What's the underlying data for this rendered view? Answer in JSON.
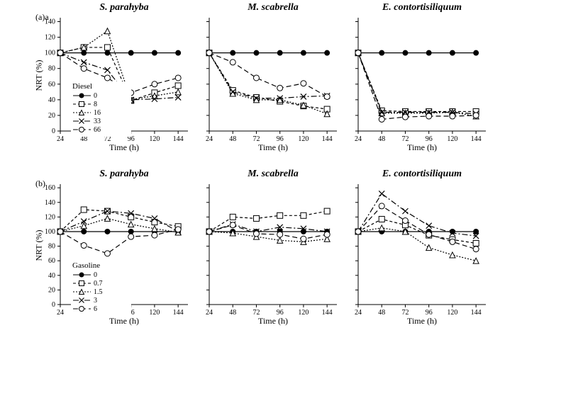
{
  "font_family": "Times New Roman",
  "title_fontsize": 14,
  "axis_label_fontsize": 12,
  "tick_fontsize": 10,
  "legend_fontsize": 10,
  "background_color": "#ffffff",
  "line_color": "#000000",
  "axis_color": "#000000",
  "subplot_width": 180,
  "subplot_height": 160,
  "x_axis": {
    "label": "Time (h)",
    "ticks": [
      24,
      48,
      72,
      96,
      120,
      144
    ],
    "xlim": [
      24,
      154
    ]
  },
  "markers": {
    "0": {
      "shape": "filled-circle",
      "dash": "solid",
      "label": "0"
    },
    "s1": {
      "shape": "open-square",
      "dash": "short",
      "label_a": "8",
      "label_b": "0.7"
    },
    "s2": {
      "shape": "open-triangle",
      "dash": "dots",
      "label_a": "16",
      "label_b": "1.5"
    },
    "s3": {
      "shape": "x-mark",
      "dash": "longshort",
      "label_a": "33",
      "label_b": "3"
    },
    "s4": {
      "shape": "open-circle",
      "dash": "long",
      "label_a": "66",
      "label_b": "6"
    }
  },
  "panel_a": {
    "label": "(a)a",
    "y_label": "NRT (%)",
    "ylim": [
      0,
      145
    ],
    "yticks": [
      0,
      20,
      40,
      60,
      80,
      100,
      120,
      140
    ],
    "legend_title": "Diesel",
    "legend_items": [
      "0",
      "8",
      "16",
      "33",
      "66"
    ],
    "subplots": [
      {
        "title": "S. parahyba",
        "series": {
          "0": [
            [
              24,
              100
            ],
            [
              48,
              100
            ],
            [
              72,
              100
            ],
            [
              96,
              100
            ],
            [
              120,
              100
            ],
            [
              144,
              100
            ]
          ],
          "s1": [
            [
              24,
              100
            ],
            [
              48,
              107
            ],
            [
              72,
              107
            ],
            [
              96,
              39
            ],
            [
              120,
              49
            ],
            [
              144,
              58
            ]
          ],
          "s2": [
            [
              24,
              100
            ],
            [
              48,
              107
            ],
            [
              72,
              128
            ],
            [
              96,
              40
            ],
            [
              120,
              45
            ],
            [
              144,
              50
            ]
          ],
          "s3": [
            [
              24,
              100
            ],
            [
              48,
              88
            ],
            [
              72,
              78
            ],
            [
              96,
              40
            ],
            [
              120,
              41
            ],
            [
              144,
              43
            ]
          ],
          "s4": [
            [
              24,
              100
            ],
            [
              48,
              80
            ],
            [
              72,
              68
            ],
            [
              96,
              49
            ],
            [
              120,
              60
            ],
            [
              144,
              68
            ]
          ]
        }
      },
      {
        "title": "M. scabrella",
        "series": {
          "0": [
            [
              24,
              100
            ],
            [
              48,
              100
            ],
            [
              72,
              100
            ],
            [
              96,
              100
            ],
            [
              120,
              100
            ],
            [
              144,
              100
            ]
          ],
          "s1": [
            [
              24,
              100
            ],
            [
              48,
              52
            ],
            [
              72,
              43
            ],
            [
              96,
              38
            ],
            [
              120,
              32
            ],
            [
              144,
              28
            ]
          ],
          "s2": [
            [
              24,
              100
            ],
            [
              48,
              48
            ],
            [
              72,
              40
            ],
            [
              96,
              40
            ],
            [
              120,
              33
            ],
            [
              144,
              22
            ]
          ],
          "s3": [
            [
              24,
              100
            ],
            [
              48,
              50
            ],
            [
              72,
              42
            ],
            [
              96,
              42
            ],
            [
              120,
              44
            ],
            [
              144,
              45
            ]
          ],
          "s4": [
            [
              24,
              100
            ],
            [
              48,
              88
            ],
            [
              72,
              68
            ],
            [
              96,
              55
            ],
            [
              120,
              61
            ],
            [
              144,
              44
            ]
          ]
        }
      },
      {
        "title": "E. contortisiliquum",
        "series": {
          "0": [
            [
              24,
              100
            ],
            [
              48,
              100
            ],
            [
              72,
              100
            ],
            [
              96,
              100
            ],
            [
              120,
              100
            ],
            [
              144,
              100
            ]
          ],
          "s1": [
            [
              24,
              100
            ],
            [
              48,
              26
            ],
            [
              72,
              25
            ],
            [
              96,
              25
            ],
            [
              120,
              25
            ],
            [
              144,
              25
            ]
          ],
          "s2": [
            [
              24,
              100
            ],
            [
              48,
              23
            ],
            [
              72,
              23
            ],
            [
              96,
              23
            ],
            [
              120,
              24
            ],
            [
              144,
              19
            ]
          ],
          "s3": [
            [
              24,
              100
            ],
            [
              48,
              24
            ],
            [
              72,
              24
            ],
            [
              96,
              24
            ],
            [
              120,
              24
            ],
            [
              144,
              22
            ]
          ],
          "s4": [
            [
              24,
              100
            ],
            [
              48,
              15
            ],
            [
              72,
              18
            ],
            [
              96,
              19
            ],
            [
              120,
              19
            ],
            [
              144,
              20
            ]
          ]
        }
      }
    ]
  },
  "panel_b": {
    "label": "(b)",
    "y_label": "NRT (%)",
    "ylim": [
      0,
      165
    ],
    "yticks": [
      0,
      20,
      40,
      60,
      80,
      100,
      120,
      140,
      160
    ],
    "legend_title": "Gasoline",
    "legend_items": [
      "0",
      "0.7",
      "1.5",
      "3",
      "6"
    ],
    "subplots": [
      {
        "title": "S. parahyba",
        "series": {
          "0": [
            [
              24,
              100
            ],
            [
              48,
              100
            ],
            [
              72,
              100
            ],
            [
              96,
              100
            ],
            [
              120,
              100
            ],
            [
              144,
              100
            ]
          ],
          "s1": [
            [
              24,
              100
            ],
            [
              48,
              130
            ],
            [
              72,
              128
            ],
            [
              96,
              120
            ],
            [
              120,
              113
            ],
            [
              144,
              107
            ]
          ],
          "s2": [
            [
              24,
              100
            ],
            [
              48,
              108
            ],
            [
              72,
              118
            ],
            [
              96,
              110
            ],
            [
              120,
              104
            ],
            [
              144,
              99
            ]
          ],
          "s3": [
            [
              24,
              100
            ],
            [
              48,
              114
            ],
            [
              72,
              128
            ],
            [
              96,
              125
            ],
            [
              120,
              118
            ],
            [
              144,
              100
            ]
          ],
          "s4": [
            [
              24,
              100
            ],
            [
              48,
              81
            ],
            [
              72,
              70
            ],
            [
              96,
              93
            ],
            [
              120,
              95
            ],
            [
              144,
              103
            ]
          ]
        }
      },
      {
        "title": "M. scabrella",
        "series": {
          "0": [
            [
              24,
              100
            ],
            [
              48,
              100
            ],
            [
              72,
              100
            ],
            [
              96,
              100
            ],
            [
              120,
              100
            ],
            [
              144,
              100
            ]
          ],
          "s1": [
            [
              24,
              100
            ],
            [
              48,
              120
            ],
            [
              72,
              118
            ],
            [
              96,
              122
            ],
            [
              120,
              122
            ],
            [
              144,
              128
            ]
          ],
          "s2": [
            [
              24,
              100
            ],
            [
              48,
              98
            ],
            [
              72,
              93
            ],
            [
              96,
              88
            ],
            [
              120,
              86
            ],
            [
              144,
              90
            ]
          ],
          "s3": [
            [
              24,
              100
            ],
            [
              48,
              110
            ],
            [
              72,
              100
            ],
            [
              96,
              106
            ],
            [
              120,
              104
            ],
            [
              144,
              100
            ]
          ],
          "s4": [
            [
              24,
              100
            ],
            [
              48,
              109
            ],
            [
              72,
              97
            ],
            [
              96,
              96
            ],
            [
              120,
              90
            ],
            [
              144,
              96
            ]
          ]
        }
      },
      {
        "title": "E. contortisiliquum",
        "series": {
          "0": [
            [
              24,
              100
            ],
            [
              48,
              100
            ],
            [
              72,
              100
            ],
            [
              96,
              100
            ],
            [
              120,
              100
            ],
            [
              144,
              100
            ]
          ],
          "s1": [
            [
              24,
              100
            ],
            [
              48,
              117
            ],
            [
              72,
              109
            ],
            [
              96,
              95
            ],
            [
              120,
              89
            ],
            [
              144,
              84
            ]
          ],
          "s2": [
            [
              24,
              100
            ],
            [
              48,
              105
            ],
            [
              72,
              100
            ],
            [
              96,
              78
            ],
            [
              120,
              68
            ],
            [
              144,
              60
            ]
          ],
          "s3": [
            [
              24,
              100
            ],
            [
              48,
              152
            ],
            [
              72,
              128
            ],
            [
              96,
              108
            ],
            [
              120,
              98
            ],
            [
              144,
              94
            ]
          ],
          "s4": [
            [
              24,
              100
            ],
            [
              48,
              135
            ],
            [
              72,
              115
            ],
            [
              96,
              96
            ],
            [
              120,
              86
            ],
            [
              144,
              76
            ]
          ]
        }
      }
    ]
  }
}
